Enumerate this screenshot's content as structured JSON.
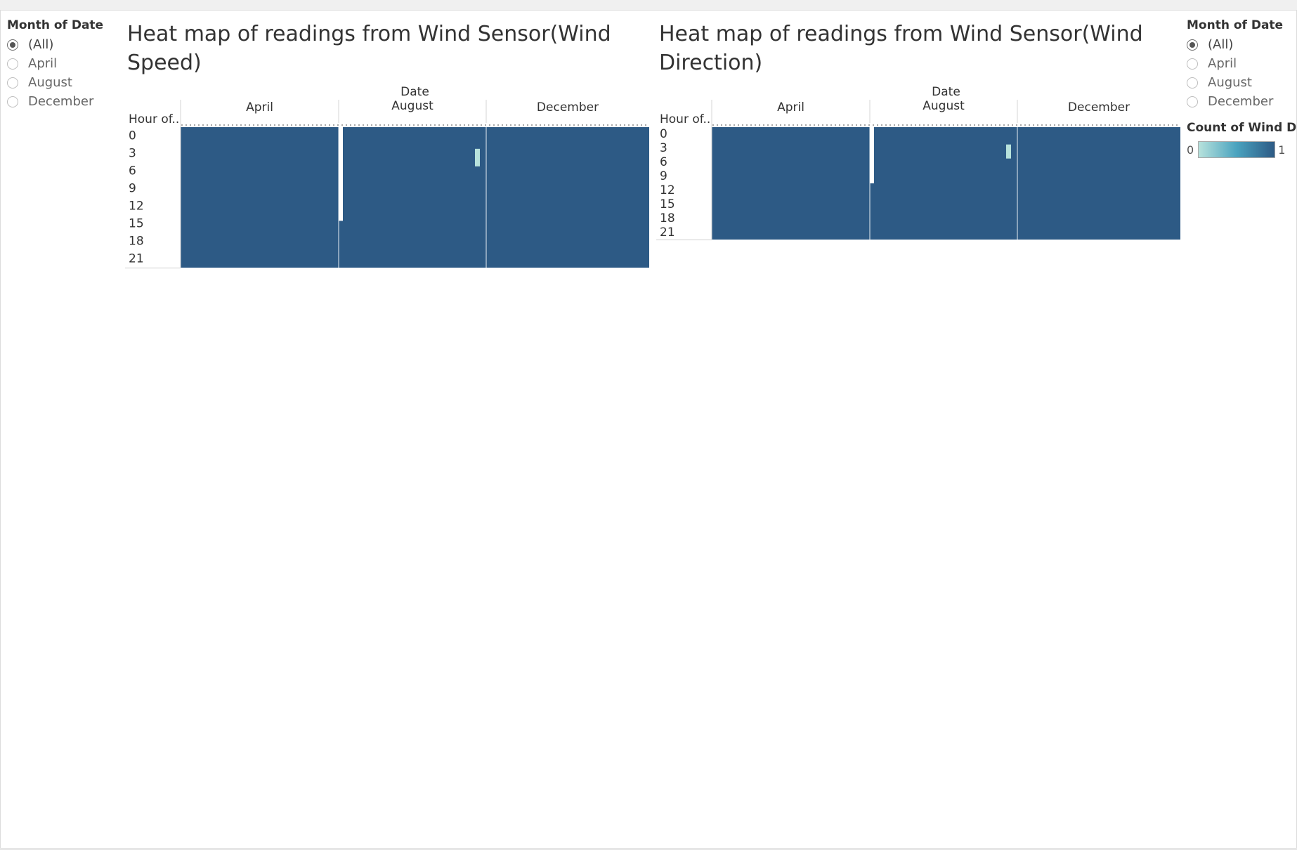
{
  "filters": {
    "left": {
      "title": "Month of Date",
      "options": [
        {
          "label": "(All)",
          "selected": true
        },
        {
          "label": "April",
          "selected": false
        },
        {
          "label": "August",
          "selected": false
        },
        {
          "label": "December",
          "selected": false
        }
      ]
    },
    "right": {
      "title": "Month of Date",
      "options": [
        {
          "label": "(All)",
          "selected": true
        },
        {
          "label": "April",
          "selected": false
        },
        {
          "label": "August",
          "selected": false
        },
        {
          "label": "December",
          "selected": false
        }
      ]
    }
  },
  "legend": {
    "title": "Count of Wind D..",
    "min_label": "0",
    "max_label": "1",
    "colors": {
      "low": "#b7e2dc",
      "mid": "#4aa3bf",
      "high": "#2d5a85"
    }
  },
  "chart_data": [
    {
      "type": "heatmap",
      "title": "Heat map of readings from Wind Sensor(Wind Speed)",
      "column_header": "Date",
      "row_header": "Hour of..",
      "months": [
        "April",
        "August",
        "December"
      ],
      "y_ticks": [
        "0",
        "3",
        "6",
        "9",
        "12",
        "15",
        "18",
        "21"
      ],
      "cell_value": 1,
      "low_cells": [
        {
          "month": "August",
          "hour": 3,
          "value": 0
        }
      ],
      "gaps": [
        {
          "month": "August",
          "hours": [
            0,
            15
          ],
          "position": "start"
        }
      ]
    },
    {
      "type": "heatmap",
      "title": "Heat map of readings from Wind Sensor(Wind Direction)",
      "column_header": "Date",
      "row_header": "Hour of..",
      "months": [
        "April",
        "August",
        "December"
      ],
      "y_ticks": [
        "0",
        "3",
        "6",
        "9",
        "12",
        "15",
        "18",
        "21"
      ],
      "cell_value": 1,
      "low_cells": [
        {
          "month": "August",
          "hour": 3,
          "value": 0
        }
      ],
      "gaps": [
        {
          "month": "August",
          "hours": [
            0,
            11
          ],
          "position": "start"
        }
      ]
    }
  ]
}
